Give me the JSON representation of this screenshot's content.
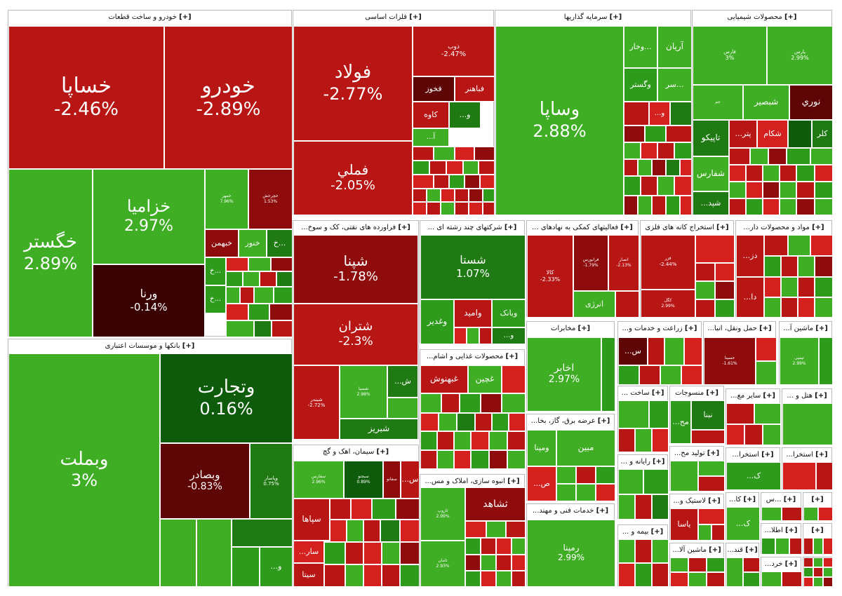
{
  "sectors": [
    {
      "id": "auto",
      "title": "خودرو و ساخت قطعات",
      "plus": "[+]"
    },
    {
      "id": "metals",
      "title": "فلزات اساسی",
      "plus": "[+]"
    },
    {
      "id": "invest",
      "title": "سرمایه گذاریها",
      "plus": "[+]"
    },
    {
      "id": "chem",
      "title": "محصولات شیمیایی",
      "plus": "[+]"
    },
    {
      "id": "banks",
      "title": "بانکها و موسسات اعتباری",
      "plus": "[+]"
    },
    {
      "id": "oil",
      "title": "فراورده های نفتی، کک و سوخ...",
      "plus": "[+]"
    },
    {
      "id": "multi",
      "title": "شرکتهای چند رشته ای ...",
      "plus": "[+]"
    },
    {
      "id": "finance_support",
      "title": "فعالیتهای کمکی به نهادهای ...",
      "plus": "[+]"
    },
    {
      "id": "mining",
      "title": "استخراج کانه های فلزی",
      "plus": "[+]"
    },
    {
      "id": "pharma",
      "title": "مواد و محصولات دار...",
      "plus": "[+]"
    },
    {
      "id": "food",
      "title": "محصولات غذایی و اشام...",
      "plus": "[+]"
    },
    {
      "id": "telecom",
      "title": "مخابرات",
      "plus": "[+]"
    },
    {
      "id": "agri",
      "title": "زراعت و خدمات و...",
      "plus": "[+]"
    },
    {
      "id": "transport",
      "title": "حمل ونقل، انبا...",
      "plus": "[+]"
    },
    {
      "id": "machinery",
      "title": "ماشین آ...",
      "plus": "[+]"
    },
    {
      "id": "cement",
      "title": "سیمان، اهک و گچ",
      "plus": "[+]"
    },
    {
      "id": "mass",
      "title": "انبوه سازی، املاک و مس...",
      "plus": "[+]"
    },
    {
      "id": "utility",
      "title": "عرضه برق، گاز، بخا...",
      "plus": "[+]"
    },
    {
      "id": "build",
      "title": "ساخت ...",
      "plus": "[+]"
    },
    {
      "id": "textile",
      "title": "منسوجات",
      "plus": "[+]"
    },
    {
      "id": "other_mining",
      "title": "سایر مع...",
      "plus": "[+]"
    },
    {
      "id": "hotel",
      "title": "هتل و ...",
      "plus": "[+]"
    },
    {
      "id": "computer",
      "title": "رایانه و ...",
      "plus": "[+]"
    },
    {
      "id": "prod",
      "title": "تولید مح...",
      "plus": "[+]"
    },
    {
      "id": "extract1",
      "title": "استخرا...",
      "plus": "[+]"
    },
    {
      "id": "extract2",
      "title": "استخرا...",
      "plus": "[+]"
    },
    {
      "id": "engserv",
      "title": "خدمات فنی و مهند...",
      "plus": "[+]"
    },
    {
      "id": "plastic",
      "title": "لاستیک و...",
      "plus": "[+]"
    },
    {
      "id": "ka",
      "title": "کا...",
      "plus": "[+]"
    },
    {
      "id": "mas",
      "title": "...س",
      "plus": "[+]"
    },
    {
      "id": "insurance",
      "title": "بیمه و ...",
      "plus": "[+]"
    },
    {
      "id": "machinery2",
      "title": "ماشین آلا...",
      "plus": "[+]"
    },
    {
      "id": "sugar",
      "title": "قند...",
      "plus": "[+]"
    },
    {
      "id": "info",
      "title": "اطلا...",
      "plus": "[+]"
    },
    {
      "id": "retail",
      "title": "خرد...",
      "plus": "[+]"
    }
  ],
  "tiles": {
    "khasapa": {
      "name": "خساپا",
      "pct": "-2.46%"
    },
    "khodro": {
      "name": "خودرو",
      "pct": "-2.89%"
    },
    "khegostar": {
      "name": "خگستر",
      "pct": "2.89%"
    },
    "khazamia": {
      "name": "خزامیا",
      "pct": "2.97%"
    },
    "varna": {
      "name": "ورنا",
      "pct": "-0.14%"
    },
    "khmehr": {
      "name": "خمهر",
      "pct": "7.96%"
    },
    "khchr": {
      "name": "خچرخش",
      "pct": "1.53%"
    },
    "khenour": {
      "name": "خنور",
      "pct": ""
    },
    "khbahman": {
      "name": "خبهمن",
      "pct": ""
    },
    "kh1": {
      "name": "خ...",
      "pct": ""
    },
    "kh2": {
      "name": "خ...",
      "pct": ""
    },
    "kh3": {
      "name": "خ...",
      "pct": ""
    },
    "foolad": {
      "name": "فولاد",
      "pct": "-2.77%"
    },
    "fameli": {
      "name": "فملي",
      "pct": "-2.05%"
    },
    "foob": {
      "name": "ذوب",
      "pct": "-2.47%"
    },
    "fabahonar": {
      "name": "فباهنر",
      "pct": ""
    },
    "fakhooz": {
      "name": "فخوز",
      "pct": ""
    },
    "kave": {
      "name": "کاوه",
      "pct": ""
    },
    "fo": {
      "name": "...و",
      "pct": ""
    },
    "fa": {
      "name": "...آ",
      "pct": ""
    },
    "vasapa": {
      "name": "وساپا",
      "pct": "2.88%"
    },
    "arian": {
      "name": "آریان",
      "pct": ""
    },
    "vakhar": {
      "name": "وخار...",
      "pct": ""
    },
    "vagostar": {
      "name": "وگستر",
      "pct": ""
    },
    "sar": {
      "name": "سر...",
      "pct": ""
    },
    "vo": {
      "name": "...و",
      "pct": ""
    },
    "fars": {
      "name": "فارس",
      "pct": "3%"
    },
    "pars": {
      "name": "پارس",
      "pct": "2.99%"
    },
    "shbasir": {
      "name": "شبصير",
      "pct": ""
    },
    "nouri": {
      "name": "نوري",
      "pct": ""
    },
    "jam": {
      "name": "جم",
      "pct": ""
    },
    "shkam": {
      "name": "شکام",
      "pct": ""
    },
    "patr": {
      "name": "...پتر",
      "pct": ""
    },
    "kal": {
      "name": "کلر",
      "pct": ""
    },
    "tapiko": {
      "name": "تاپیکو",
      "pct": ""
    },
    "shafars": {
      "name": "شفارس",
      "pct": ""
    },
    "shpd": {
      "name": "...شپد",
      "pct": ""
    },
    "vabemelat": {
      "name": "وبملت",
      "pct": "3%"
    },
    "vatejarat": {
      "name": "وتجارت",
      "pct": "0.16%"
    },
    "vabsader": {
      "name": "وبصادر",
      "pct": "-0.83%"
    },
    "vapasar": {
      "name": "وپاسار",
      "pct": "0.75%"
    },
    "vo2": {
      "name": "...و",
      "pct": ""
    },
    "shpna": {
      "name": "شپنا",
      "pct": "-1.78%"
    },
    "shtran": {
      "name": "شتران",
      "pct": "-2.3%"
    },
    "shbandar": {
      "name": "شبندر",
      "pct": "-2.72%"
    },
    "shaspa": {
      "name": "شسپا",
      "pct": "2.98%"
    },
    "sh1": {
      "name": "...ش",
      "pct": ""
    },
    "shbriz": {
      "name": "شبریز",
      "pct": ""
    },
    "shasta": {
      "name": "شستا",
      "pct": "1.07%"
    },
    "vabank": {
      "name": "وبانک",
      "pct": ""
    },
    "vamid": {
      "name": "وامید",
      "pct": ""
    },
    "vaghadir": {
      "name": "وغدير",
      "pct": ""
    },
    "vo3": {
      "name": "...و",
      "pct": ""
    },
    "kala": {
      "name": "کالا",
      "pct": "-2.33%"
    },
    "farabours": {
      "name": "فرابورس",
      "pct": "-1.79%"
    },
    "ansari": {
      "name": "انصار",
      "pct": "-2.13%"
    },
    "energy": {
      "name": "انرژی",
      "pct": ""
    },
    "foolaz": {
      "name": "فزر",
      "pct": "-2.44%"
    },
    "ghol": {
      "name": "کگل",
      "pct": "2.99%"
    },
    "dz": {
      "name": "...دز",
      "pct": ""
    },
    "da": {
      "name": "...دا",
      "pct": ""
    },
    "ghaghnoush": {
      "name": "غبهنوش",
      "pct": ""
    },
    "ghchin": {
      "name": "غچین",
      "pct": ""
    },
    "akhaber": {
      "name": "اخابر",
      "pct": "2.97%"
    },
    "sr": {
      "name": "...س",
      "pct": ""
    },
    "hamlunaghl": {
      "name": "حسينا",
      "pct": "-1.61%"
    },
    "machine1": {
      "name": "تپمپی",
      "pct": "2.99%"
    },
    "sepaha": {
      "name": "سپاها",
      "pct": ""
    },
    "sar2": {
      "name": "...سار",
      "pct": ""
    },
    "sita": {
      "name": "سیتا",
      "pct": ""
    },
    "sfars": {
      "name": "سفارس",
      "pct": "2.96%"
    },
    "sbojnord": {
      "name": "سبجنو",
      "pct": "0.89%"
    },
    "sfanoos": {
      "name": "سفانو",
      "pct": ""
    },
    "ss": {
      "name": "...س",
      "pct": ""
    },
    "tashahad": {
      "name": "ثشاهد",
      "pct": ""
    },
    "tharop": {
      "name": "ثاروپ",
      "pct": "2.99%"
    },
    "thamin": {
      "name": "ثامان",
      "pct": "2.93%"
    },
    "mbin": {
      "name": "مبین",
      "pct": ""
    },
    "vamapna": {
      "name": "ومپنا",
      "pct": ""
    },
    "ms": {
      "name": "...ص",
      "pct": ""
    },
    "rampna": {
      "name": "رمپنا",
      "pct": "2.99%"
    },
    "nbna": {
      "name": "نبنا",
      "pct": ""
    },
    "mh": {
      "name": "...مح",
      "pct": ""
    },
    "yasa": {
      "name": "یاسا",
      "pct": ""
    },
    "k1": {
      "name": "...ک",
      "pct": ""
    },
    "k2": {
      "name": "...ک",
      "pct": ""
    }
  },
  "colors": {
    "strong_green": "#3fae24",
    "dark_green": "#0e5c0b",
    "red": "#b81515",
    "dark_red": "#5e0606"
  }
}
